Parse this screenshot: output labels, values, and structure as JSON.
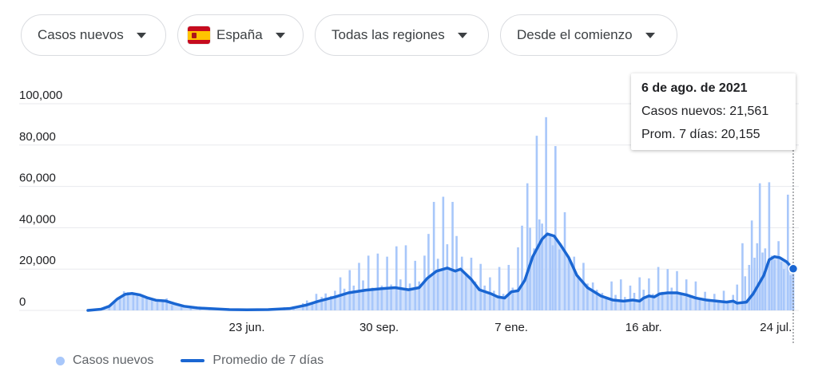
{
  "filters": {
    "metric": "Casos nuevos",
    "country": "España",
    "region": "Todas las regiones",
    "period": "Desde el comienzo"
  },
  "icons": {
    "country_flag": "spain-flag-icon",
    "dropdown": "caret-down-icon"
  },
  "colors": {
    "bars": "#a8c7fa",
    "average_line": "#1a66d2",
    "grid": "#e8eaed"
  },
  "tooltip": {
    "date": "6 de ago. de 2021",
    "cases_label": "Casos nuevos: 21,561",
    "avg_label": "Prom. 7 días: 20,155"
  },
  "legend": {
    "bars": "Casos nuevos",
    "line": "Promedio de 7 días"
  },
  "chart_data": {
    "type": "bar",
    "x_range": [
      "2020-02-25",
      "2021-08-06"
    ],
    "ylim": [
      0,
      100000
    ],
    "y_ticks": [
      {
        "value": 0,
        "label": "0"
      },
      {
        "value": 20000,
        "label": "20,000"
      },
      {
        "value": 40000,
        "label": "40,000"
      },
      {
        "value": 60000,
        "label": "60,000"
      },
      {
        "value": 80000,
        "label": "80,000"
      },
      {
        "value": 100000,
        "label": "100,000"
      }
    ],
    "x_ticks": [
      {
        "date": "2020-06-23",
        "label": "23 jun."
      },
      {
        "date": "2020-09-30",
        "label": "30 sep."
      },
      {
        "date": "2021-01-07",
        "label": "7 ene."
      },
      {
        "date": "2021-04-16",
        "label": "16 abr."
      },
      {
        "date": "2021-07-24",
        "label": "24 jul."
      }
    ],
    "grid": true,
    "legend_position": "bottom-left",
    "series": [
      {
        "name": "Casos nuevos",
        "type": "bar",
        "points": [
          [
            "2020-03-01",
            300
          ],
          [
            "2020-03-08",
            1200
          ],
          [
            "2020-03-12",
            2500
          ],
          [
            "2020-03-16",
            4500
          ],
          [
            "2020-03-20",
            6500
          ],
          [
            "2020-03-23",
            9200
          ],
          [
            "2020-03-26",
            8800
          ],
          [
            "2020-03-30",
            8000
          ],
          [
            "2020-04-02",
            8200
          ],
          [
            "2020-04-06",
            6500
          ],
          [
            "2020-04-09",
            5800
          ],
          [
            "2020-04-13",
            4800
          ],
          [
            "2020-04-17",
            5000
          ],
          [
            "2020-04-21",
            4200
          ],
          [
            "2020-04-24",
            5800
          ],
          [
            "2020-04-28",
            2500
          ],
          [
            "2020-05-05",
            1500
          ],
          [
            "2020-05-12",
            900
          ],
          [
            "2020-05-19",
            700
          ],
          [
            "2020-05-26",
            500
          ],
          [
            "2020-06-02",
            400
          ],
          [
            "2020-06-09",
            300
          ],
          [
            "2020-06-16",
            400
          ],
          [
            "2020-06-23",
            400
          ],
          [
            "2020-06-30",
            500
          ],
          [
            "2020-07-07",
            700
          ],
          [
            "2020-07-14",
            900
          ],
          [
            "2020-07-21",
            1500
          ],
          [
            "2020-07-28",
            2000
          ],
          [
            "2020-08-04",
            3500
          ],
          [
            "2020-08-07",
            4800
          ],
          [
            "2020-08-11",
            3000
          ],
          [
            "2020-08-14",
            8000
          ],
          [
            "2020-08-18",
            6500
          ],
          [
            "2020-08-21",
            8200
          ],
          [
            "2020-08-25",
            7000
          ],
          [
            "2020-08-28",
            9500
          ],
          [
            "2020-09-01",
            16000
          ],
          [
            "2020-09-04",
            10500
          ],
          [
            "2020-09-08",
            19500
          ],
          [
            "2020-09-11",
            12000
          ],
          [
            "2020-09-15",
            23000
          ],
          [
            "2020-09-18",
            14500
          ],
          [
            "2020-09-22",
            26500
          ],
          [
            "2020-09-25",
            11000
          ],
          [
            "2020-09-29",
            27500
          ],
          [
            "2020-10-02",
            12000
          ],
          [
            "2020-10-06",
            26000
          ],
          [
            "2020-10-09",
            12500
          ],
          [
            "2020-10-13",
            31000
          ],
          [
            "2020-10-16",
            15000
          ],
          [
            "2020-10-20",
            31500
          ],
          [
            "2020-10-23",
            13000
          ],
          [
            "2020-10-27",
            24000
          ],
          [
            "2020-10-30",
            14000
          ],
          [
            "2020-11-03",
            26500
          ],
          [
            "2020-11-06",
            37000
          ],
          [
            "2020-11-10",
            52500
          ],
          [
            "2020-11-13",
            25000
          ],
          [
            "2020-11-17",
            55000
          ],
          [
            "2020-11-20",
            32000
          ],
          [
            "2020-11-24",
            52500
          ],
          [
            "2020-11-27",
            36000
          ],
          [
            "2020-12-01",
            26000
          ],
          [
            "2020-12-04",
            18000
          ],
          [
            "2020-12-08",
            25500
          ],
          [
            "2020-12-11",
            14000
          ],
          [
            "2020-12-15",
            22500
          ],
          [
            "2020-12-18",
            12000
          ],
          [
            "2020-12-22",
            16000
          ],
          [
            "2020-12-25",
            9500
          ],
          [
            "2020-12-29",
            21000
          ],
          [
            "2021-01-01",
            8000
          ],
          [
            "2021-01-05",
            22000
          ],
          [
            "2021-01-08",
            11000
          ],
          [
            "2021-01-12",
            30500
          ],
          [
            "2021-01-15",
            41000
          ],
          [
            "2021-01-19",
            61500
          ],
          [
            "2021-01-21",
            40000
          ],
          [
            "2021-01-24",
            30000
          ],
          [
            "2021-01-26",
            84500
          ],
          [
            "2021-01-28",
            44000
          ],
          [
            "2021-01-30",
            42000
          ],
          [
            "2021-02-02",
            93500
          ],
          [
            "2021-02-05",
            36000
          ],
          [
            "2021-02-07",
            31500
          ],
          [
            "2021-02-09",
            79500
          ],
          [
            "2021-02-12",
            29500
          ],
          [
            "2021-02-16",
            47500
          ],
          [
            "2021-02-19",
            26000
          ],
          [
            "2021-02-23",
            26000
          ],
          [
            "2021-02-26",
            17000
          ],
          [
            "2021-03-02",
            23000
          ],
          [
            "2021-03-05",
            13000
          ],
          [
            "2021-03-09",
            13500
          ],
          [
            "2021-03-12",
            10000
          ],
          [
            "2021-03-16",
            8500
          ],
          [
            "2021-03-19",
            6000
          ],
          [
            "2021-03-23",
            14000
          ],
          [
            "2021-03-26",
            7500
          ],
          [
            "2021-03-30",
            15000
          ],
          [
            "2021-04-02",
            6500
          ],
          [
            "2021-04-06",
            12000
          ],
          [
            "2021-04-09",
            8500
          ],
          [
            "2021-04-13",
            16000
          ],
          [
            "2021-04-16",
            10000
          ],
          [
            "2021-04-20",
            15500
          ],
          [
            "2021-04-23",
            8000
          ],
          [
            "2021-04-27",
            21000
          ],
          [
            "2021-04-30",
            9000
          ],
          [
            "2021-05-04",
            20000
          ],
          [
            "2021-05-07",
            11000
          ],
          [
            "2021-05-11",
            19000
          ],
          [
            "2021-05-14",
            8000
          ],
          [
            "2021-05-18",
            15000
          ],
          [
            "2021-05-21",
            6500
          ],
          [
            "2021-05-25",
            14000
          ],
          [
            "2021-05-28",
            6000
          ],
          [
            "2021-06-01",
            9000
          ],
          [
            "2021-06-04",
            5500
          ],
          [
            "2021-06-08",
            8000
          ],
          [
            "2021-06-11",
            4500
          ],
          [
            "2021-06-15",
            9500
          ],
          [
            "2021-06-18",
            3500
          ],
          [
            "2021-06-22",
            7500
          ],
          [
            "2021-06-25",
            12500
          ],
          [
            "2021-06-29",
            32500
          ],
          [
            "2021-07-01",
            16500
          ],
          [
            "2021-07-04",
            22000
          ],
          [
            "2021-07-06",
            43500
          ],
          [
            "2021-07-08",
            25500
          ],
          [
            "2021-07-10",
            32500
          ],
          [
            "2021-07-12",
            61500
          ],
          [
            "2021-07-14",
            28000
          ],
          [
            "2021-07-16",
            30000
          ],
          [
            "2021-07-19",
            62000
          ],
          [
            "2021-07-21",
            26500
          ],
          [
            "2021-07-23",
            24500
          ],
          [
            "2021-07-26",
            33500
          ],
          [
            "2021-07-28",
            23500
          ],
          [
            "2021-07-30",
            20000
          ],
          [
            "2021-08-02",
            56000
          ],
          [
            "2021-08-04",
            17000
          ],
          [
            "2021-08-06",
            21561
          ]
        ]
      },
      {
        "name": "Promedio de 7 días",
        "type": "line",
        "points": [
          [
            "2020-02-25",
            0
          ],
          [
            "2020-03-06",
            600
          ],
          [
            "2020-03-12",
            2000
          ],
          [
            "2020-03-18",
            5500
          ],
          [
            "2020-03-24",
            7800
          ],
          [
            "2020-03-29",
            8200
          ],
          [
            "2020-04-04",
            7500
          ],
          [
            "2020-04-10",
            6000
          ],
          [
            "2020-04-16",
            4900
          ],
          [
            "2020-04-23",
            4600
          ],
          [
            "2020-04-30",
            3200
          ],
          [
            "2020-05-07",
            2000
          ],
          [
            "2020-05-17",
            1200
          ],
          [
            "2020-05-28",
            800
          ],
          [
            "2020-06-10",
            400
          ],
          [
            "2020-06-23",
            300
          ],
          [
            "2020-07-09",
            400
          ],
          [
            "2020-07-25",
            900
          ],
          [
            "2020-08-06",
            2500
          ],
          [
            "2020-08-16",
            4500
          ],
          [
            "2020-08-28",
            6500
          ],
          [
            "2020-09-07",
            8500
          ],
          [
            "2020-09-20",
            9800
          ],
          [
            "2020-10-02",
            10500
          ],
          [
            "2020-10-12",
            11000
          ],
          [
            "2020-10-22",
            10000
          ],
          [
            "2020-10-30",
            11000
          ],
          [
            "2020-11-05",
            15500
          ],
          [
            "2020-11-12",
            19000
          ],
          [
            "2020-11-20",
            20500
          ],
          [
            "2020-11-26",
            19000
          ],
          [
            "2020-11-30",
            20000
          ],
          [
            "2020-12-08",
            15000
          ],
          [
            "2020-12-14",
            10000
          ],
          [
            "2020-12-23",
            8000
          ],
          [
            "2020-12-28",
            6500
          ],
          [
            "2021-01-02",
            6000
          ],
          [
            "2021-01-07",
            9000
          ],
          [
            "2021-01-12",
            9500
          ],
          [
            "2021-01-17",
            14500
          ],
          [
            "2021-01-23",
            26000
          ],
          [
            "2021-01-30",
            34500
          ],
          [
            "2021-02-03",
            37000
          ],
          [
            "2021-02-08",
            36000
          ],
          [
            "2021-02-13",
            31500
          ],
          [
            "2021-02-19",
            25500
          ],
          [
            "2021-02-25",
            17000
          ],
          [
            "2021-03-05",
            11000
          ],
          [
            "2021-03-15",
            7000
          ],
          [
            "2021-03-24",
            5000
          ],
          [
            "2021-04-01",
            4500
          ],
          [
            "2021-04-08",
            5000
          ],
          [
            "2021-04-13",
            4500
          ],
          [
            "2021-04-16",
            6000
          ],
          [
            "2021-04-20",
            7000
          ],
          [
            "2021-04-24",
            6500
          ],
          [
            "2021-04-28",
            8000
          ],
          [
            "2021-05-04",
            8500
          ],
          [
            "2021-05-11",
            8500
          ],
          [
            "2021-05-18",
            7500
          ],
          [
            "2021-05-25",
            6000
          ],
          [
            "2021-06-02",
            5000
          ],
          [
            "2021-06-10",
            4500
          ],
          [
            "2021-06-17",
            4000
          ],
          [
            "2021-06-22",
            4500
          ],
          [
            "2021-06-25",
            3500
          ],
          [
            "2021-07-02",
            4000
          ],
          [
            "2021-07-07",
            8000
          ],
          [
            "2021-07-11",
            12500
          ],
          [
            "2021-07-15",
            17000
          ],
          [
            "2021-07-19",
            24500
          ],
          [
            "2021-07-23",
            26000
          ],
          [
            "2021-07-27",
            25500
          ],
          [
            "2021-08-01",
            23500
          ],
          [
            "2021-08-06",
            20155
          ]
        ]
      }
    ]
  }
}
